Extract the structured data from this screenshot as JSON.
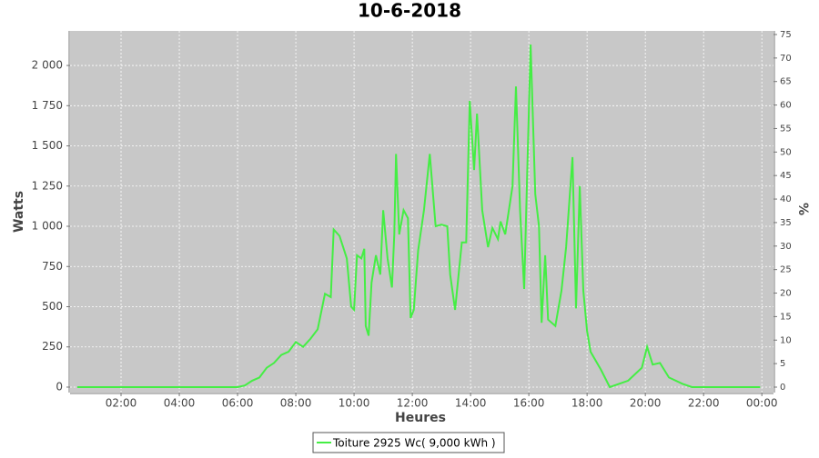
{
  "chart_data": {
    "type": "line",
    "title": "10-6-2018",
    "x_label": "Heures",
    "y_label": "Watts",
    "y2_label": "%",
    "x": [
      0.5,
      6.0,
      6.25,
      6.5,
      6.75,
      7.0,
      7.25,
      7.5,
      7.75,
      8.0,
      8.25,
      8.5,
      8.75,
      9.0,
      9.2,
      9.3,
      9.5,
      9.75,
      9.9,
      10.0,
      10.1,
      10.25,
      10.35,
      10.4,
      10.5,
      10.6,
      10.75,
      10.9,
      11.0,
      11.15,
      11.3,
      11.38,
      11.44,
      11.55,
      11.7,
      11.85,
      11.94,
      12.05,
      12.2,
      12.4,
      12.6,
      12.8,
      13.0,
      13.2,
      13.3,
      13.47,
      13.7,
      13.85,
      13.97,
      14.12,
      14.22,
      14.4,
      14.6,
      14.75,
      14.94,
      15.03,
      15.19,
      15.44,
      15.56,
      15.7,
      15.84,
      16.06,
      16.22,
      16.35,
      16.44,
      16.56,
      16.66,
      16.91,
      17.12,
      17.28,
      17.5,
      17.62,
      17.75,
      17.87,
      18.0,
      18.12,
      18.47,
      18.78,
      19.41,
      19.88,
      20.06,
      20.25,
      20.5,
      20.81,
      21.28,
      21.6,
      23.94
    ],
    "series": [
      {
        "name": "Toiture 2925 Wc( 9,000 kWh )",
        "color": "#44ee44",
        "values": [
          0,
          0,
          10,
          40,
          60,
          120,
          150,
          200,
          220,
          280,
          250,
          300,
          360,
          580,
          560,
          980,
          940,
          800,
          500,
          480,
          820,
          800,
          860,
          380,
          320,
          650,
          820,
          700,
          1100,
          800,
          620,
          950,
          1450,
          950,
          1100,
          1050,
          430,
          480,
          850,
          1100,
          1450,
          1000,
          1010,
          1000,
          700,
          480,
          900,
          900,
          1780,
          1350,
          1700,
          1100,
          870,
          990,
          920,
          1030,
          950,
          1250,
          1870,
          1100,
          610,
          2130,
          1200,
          1000,
          400,
          820,
          420,
          380,
          600,
          870,
          1430,
          490,
          1250,
          600,
          350,
          220,
          110,
          0,
          40,
          120,
          250,
          140,
          150,
          60,
          20,
          0,
          0
        ]
      }
    ],
    "xlim": [
      0.25,
      24.4
    ],
    "xticks": [
      {
        "value": 2,
        "label": "02:00"
      },
      {
        "value": 4,
        "label": "04:00"
      },
      {
        "value": 6,
        "label": "06:00"
      },
      {
        "value": 8,
        "label": "08:00"
      },
      {
        "value": 10,
        "label": "10:00"
      },
      {
        "value": 12,
        "label": "12:00"
      },
      {
        "value": 14,
        "label": "14:00"
      },
      {
        "value": 16,
        "label": "16:00"
      },
      {
        "value": 18,
        "label": "18:00"
      },
      {
        "value": 20,
        "label": "20:00"
      },
      {
        "value": 22,
        "label": "22:00"
      },
      {
        "value": 24,
        "label": "00:00"
      }
    ],
    "ylim": [
      -34,
      2215
    ],
    "yticks": [
      0,
      250,
      500,
      750,
      {
        "value": 1000,
        "label": "1 000"
      },
      {
        "value": 1250,
        "label": "1 250"
      },
      {
        "value": 1500,
        "label": "1 500"
      },
      {
        "value": 1750,
        "label": "1 750"
      },
      {
        "value": 2000,
        "label": "2 000"
      }
    ],
    "y2lim": [
      -1.16,
      75.77
    ],
    "y2ticks": [
      0,
      5,
      10,
      15,
      20,
      25,
      30,
      35,
      40,
      45,
      50,
      55,
      60,
      65,
      70,
      75
    ],
    "grid": true
  }
}
